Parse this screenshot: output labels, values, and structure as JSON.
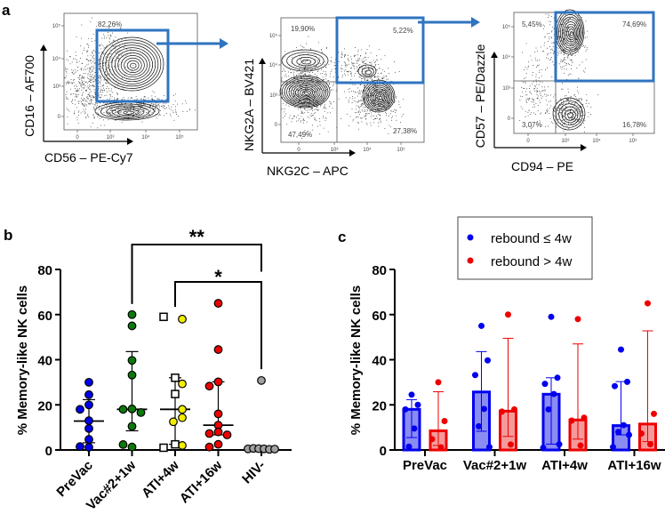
{
  "panel_labels": {
    "a": "a",
    "b": "b",
    "c": "c"
  },
  "colors": {
    "gate": "#2f74c0",
    "blue": "#0000ee",
    "red": "#ee0000",
    "green": "#0a7a0a",
    "yellow": "#f2ee00",
    "grey": "#a0a0a0",
    "bar_blue": "#8a8cf2",
    "bar_red": "#f59a9a"
  },
  "flow_plots": [
    {
      "id": "cd16-cd56",
      "ylabel": "CD16 – AF700",
      "xlabel": "CD56 – PE-Cy7",
      "xticks": [
        "0",
        "10³",
        "10⁴",
        "10⁵"
      ],
      "yticks": [
        "10⁵",
        "10⁴",
        "10³",
        "0"
      ],
      "gates": [
        {
          "label": "82,26%"
        }
      ]
    },
    {
      "id": "nkg2a-nkg2c",
      "ylabel": "NKG2A – BV421",
      "xlabel": "NKG2C – APC",
      "xticks": [
        "0",
        "10³",
        "10⁴",
        "10⁵"
      ],
      "yticks": [
        "10⁵",
        "10⁴",
        "10³",
        "0"
      ],
      "gates": [
        {
          "label": "19,90%"
        },
        {
          "label": "5,22%"
        },
        {
          "label": "47,49%"
        },
        {
          "label": "27,38%"
        }
      ]
    },
    {
      "id": "cd57-cd94",
      "ylabel": "CD57 – PE/Dazzle",
      "xlabel": "CD94 – PE",
      "xticks": [
        "0",
        "10³",
        "10⁴",
        "10⁵"
      ],
      "yticks": [
        "10⁵",
        "10⁴",
        "10³",
        "0"
      ],
      "gates": [
        {
          "label": "5,45%"
        },
        {
          "label": "74,69%"
        },
        {
          "label": "3,07%"
        },
        {
          "label": "16,78%"
        }
      ]
    }
  ],
  "chart_data": [
    {
      "panel": "b",
      "type": "scatter",
      "title": "",
      "ylabel": "% Memory-like NK cells",
      "xlabel": "",
      "ylim": [
        0,
        80
      ],
      "yticks": [
        0,
        20,
        40,
        60,
        80
      ],
      "categories": [
        "PreVac",
        "Vac#2+1w",
        "ATI+4w",
        "ATI+16w",
        "HIV-"
      ],
      "groups": [
        {
          "name": "PreVac",
          "color": "blue",
          "points": [
            30,
            24.5,
            20,
            18,
            13,
            9.5,
            4.7,
            1.2,
            1.5
          ],
          "median": 12.8,
          "iqr": [
            3.2,
            22.3
          ]
        },
        {
          "name": "Vac#2+1w",
          "color": "green",
          "points": [
            60,
            55,
            39.7,
            33.2,
            18.2,
            18,
            16.6,
            10.5,
            1.3,
            2.4
          ],
          "median": 18,
          "iqr": [
            8.5,
            43.6
          ]
        },
        {
          "name": "ATI+4w",
          "color": "yellow",
          "points": [
            58,
            29.3,
            18,
            14.3,
            12.5,
            2
          ],
          "square_points": [
            59,
            32,
            24.8,
            1,
            2.5
          ],
          "median": 18,
          "iqr": [
            2.5,
            32
          ]
        },
        {
          "name": "ATI+16w",
          "color": "red",
          "points": [
            65,
            44.5,
            30.2,
            28.3,
            16,
            11,
            8,
            7.3,
            6.7,
            2.5,
            1.3
          ],
          "median": 11,
          "iqr": [
            6.7,
            30.2
          ]
        },
        {
          "name": "HIV-",
          "color": "grey",
          "points": [
            30.8,
            0.5,
            0.7,
            0.6,
            0.5,
            0.3,
            0.4
          ],
          "median": 0.5,
          "iqr": [
            0.3,
            0.7
          ]
        }
      ],
      "significance": [
        {
          "from": "Vac#2+1w",
          "to": "HIV-",
          "label": "**"
        },
        {
          "from": "ATI+4w",
          "to": "HIV-",
          "label": "*"
        }
      ]
    },
    {
      "panel": "c",
      "type": "bar",
      "title": "",
      "ylabel": "% Memory-like NK cells",
      "xlabel": "",
      "ylim": [
        0,
        80
      ],
      "yticks": [
        0,
        20,
        40,
        60,
        80
      ],
      "legend_position": "top",
      "categories": [
        "PreVac",
        "Vac#2+1w",
        "ATI+4w",
        "ATI+16w"
      ],
      "series": [
        {
          "name": "rebound ≤ 4w",
          "color": "blue",
          "values": [
            18,
            25.7,
            24.7,
            10.8
          ],
          "error": [
            [
              5.5,
              22.3
            ],
            [
              8.3,
              43.6
            ],
            [
              2.6,
              32
            ],
            [
              6.7,
              30.3
            ]
          ],
          "points": [
            [
              24.5,
              20,
              18,
              9.5,
              1.5
            ],
            [
              55,
              39.7,
              33.2,
              18.2,
              10.5,
              1.3
            ],
            [
              59,
              32,
              29.3,
              24.8,
              18,
              2.5,
              1
            ],
            [
              44.5,
              30.2,
              28.3,
              11,
              8,
              6.7,
              1.3
            ]
          ]
        },
        {
          "name": "rebound > 4w",
          "color": "red",
          "values": [
            8.5,
            17.2,
            13.3,
            11.5
          ],
          "error": [
            [
              2,
              25.8
            ],
            [
              6,
              49.5
            ],
            [
              4.8,
              47
            ],
            [
              3.7,
              52.8
            ]
          ],
          "points": [
            [
              30,
              12.8,
              4.8,
              1.2
            ],
            [
              60,
              18,
              17,
              2.4
            ],
            [
              58,
              14.3,
              13,
              2
            ],
            [
              65,
              16,
              7.3,
              2.5
            ]
          ]
        }
      ]
    }
  ]
}
